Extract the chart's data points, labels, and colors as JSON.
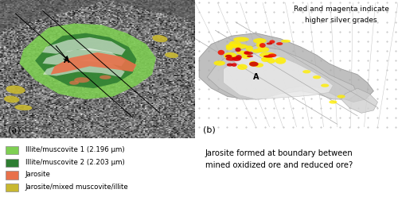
{
  "fig_width": 5.0,
  "fig_height": 2.48,
  "dpi": 100,
  "background_color": "#ffffff",
  "panel_a_label": "(a)",
  "panel_b_label": "(b)",
  "legend_items": [
    {
      "label": "Illite/muscovite 1 (2.196 μm)",
      "color": "#7ecf52"
    },
    {
      "label": "Illite/muscovite 2 (2.203 μm)",
      "color": "#2e7d32"
    },
    {
      "label": "Jarosite",
      "color": "#e8714a"
    },
    {
      "label": "Jarosite/mixed muscovite/illite",
      "color": "#c8b830"
    }
  ],
  "annotation_b_line1": "Red and magenta indicate",
  "annotation_b_line2": "higher silver grades",
  "bottom_text": "Jarosite formed at boundary between\nmined oxidized ore and reduced ore?",
  "label_A_a": "A",
  "label_A_b": "A",
  "panel_a_bg": "#888888",
  "panel_b_bg": "#f5f5f5"
}
